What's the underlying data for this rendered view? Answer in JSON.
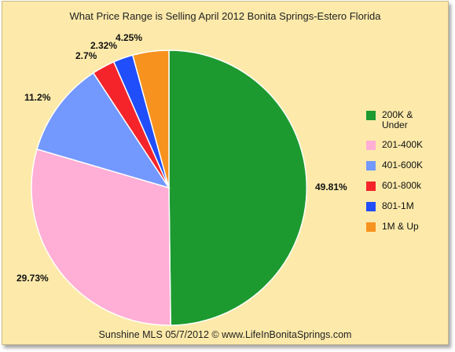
{
  "chart_data": {
    "type": "pie",
    "title": "What Price Range is Selling  April 2012 Bonita Springs-Estero Florida",
    "footer": "Sunshine MLS 05/7/2012  ©  www.LifeInBonitaSprings.com",
    "legend_position": "right",
    "slices": [
      {
        "label": "200K & Under",
        "value": 49.81,
        "display": "49.81%",
        "color": "#1d9a2f"
      },
      {
        "label": "201-400K",
        "value": 29.73,
        "display": "29.73%",
        "color": "#ffaed5"
      },
      {
        "label": "401-600K",
        "value": 11.2,
        "display": "11.2%",
        "color": "#7398fe"
      },
      {
        "label": "601-800k",
        "value": 2.7,
        "display": "2.7%",
        "color": "#f5242b"
      },
      {
        "label": "801-1M",
        "value": 2.32,
        "display": "2.32%",
        "color": "#1f4efa"
      },
      {
        "label": "1M & Up",
        "value": 4.25,
        "display": "4.25%",
        "color": "#f7921e"
      }
    ]
  }
}
